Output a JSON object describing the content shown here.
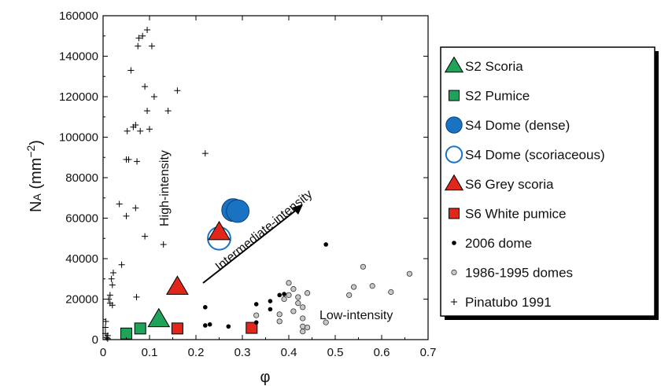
{
  "chart_data": {
    "type": "scatter",
    "xlabel": "φ",
    "ylabel_main": "N",
    "ylabel_sub": "A",
    "ylabel_unit": " (mm",
    "ylabel_exp": "−2",
    "ylabel_close": ")",
    "xlim": [
      0,
      0.7
    ],
    "ylim": [
      0,
      160000
    ],
    "x_ticks": [
      "0",
      "0.1",
      "0.2",
      "0.3",
      "0.4",
      "0.5",
      "0.6",
      "0.7"
    ],
    "y_ticks": [
      "0",
      "20000",
      "40000",
      "60000",
      "80000",
      "100000",
      "120000",
      "140000",
      "160000"
    ],
    "grid": false,
    "legend_position": "right",
    "annotations": {
      "high": "High-intensity",
      "intermediate": "Intermediate-intensity",
      "low": "Low-intensity"
    },
    "series": [
      {
        "name": "S2 Scoria",
        "marker": "triangle",
        "color": "#1fa35b",
        "filled": true,
        "points": [
          [
            0.12,
            10000
          ]
        ]
      },
      {
        "name": "S2 Pumice",
        "marker": "square",
        "color": "#1fa35b",
        "filled": true,
        "points": [
          [
            0.05,
            3000
          ],
          [
            0.08,
            5500
          ]
        ]
      },
      {
        "name": "S4 Dome (dense)",
        "marker": "circle",
        "color": "#1a73c2",
        "filled": true,
        "points": [
          [
            0.28,
            64000
          ],
          [
            0.29,
            63500
          ]
        ]
      },
      {
        "name": "S4 Dome (scoriaceous)",
        "marker": "circle",
        "color": "#1a73c2",
        "filled": false,
        "points": [
          [
            0.25,
            50000
          ]
        ]
      },
      {
        "name": "S6 Grey scoria",
        "marker": "triangle",
        "color": "#e1261c",
        "filled": true,
        "points": [
          [
            0.16,
            26000
          ],
          [
            0.25,
            53000
          ]
        ]
      },
      {
        "name": "S6 White pumice",
        "marker": "square",
        "color": "#e1261c",
        "filled": true,
        "points": [
          [
            0.16,
            5500
          ],
          [
            0.32,
            5800
          ]
        ]
      },
      {
        "name": "2006 dome",
        "marker": "dot",
        "color": "#000000",
        "filled": true,
        "points": [
          [
            0.22,
            16000
          ],
          [
            0.22,
            7000
          ],
          [
            0.23,
            7500
          ],
          [
            0.27,
            6500
          ],
          [
            0.33,
            17500
          ],
          [
            0.33,
            8500
          ],
          [
            0.36,
            19000
          ],
          [
            0.36,
            15000
          ],
          [
            0.38,
            22000
          ],
          [
            0.39,
            22500
          ],
          [
            0.48,
            47000
          ]
        ]
      },
      {
        "name": "1986-1995 domes",
        "marker": "opencircle",
        "color": "#aaaaaa",
        "filled": true,
        "points": [
          [
            0.33,
            12000
          ],
          [
            0.38,
            12500
          ],
          [
            0.38,
            9000
          ],
          [
            0.39,
            20000
          ],
          [
            0.4,
            28000
          ],
          [
            0.4,
            22000
          ],
          [
            0.41,
            25000
          ],
          [
            0.41,
            14000
          ],
          [
            0.42,
            21000
          ],
          [
            0.42,
            18000
          ],
          [
            0.43,
            16000
          ],
          [
            0.43,
            10500
          ],
          [
            0.43,
            6500
          ],
          [
            0.43,
            4000
          ],
          [
            0.44,
            23000
          ],
          [
            0.44,
            6000
          ],
          [
            0.48,
            8500
          ],
          [
            0.53,
            22000
          ],
          [
            0.54,
            26000
          ],
          [
            0.56,
            36000
          ],
          [
            0.58,
            26500
          ],
          [
            0.62,
            23500
          ],
          [
            0.66,
            32500
          ]
        ]
      },
      {
        "name": "Pinatubo 1991",
        "marker": "plus",
        "color": "#000000",
        "filled": true,
        "points": [
          [
            0.005,
            3000
          ],
          [
            0.005,
            6000
          ],
          [
            0.006,
            9000
          ],
          [
            0.008,
            1000
          ],
          [
            0.01,
            500
          ],
          [
            0.01,
            2000
          ],
          [
            0.012,
            20000
          ],
          [
            0.015,
            22000
          ],
          [
            0.015,
            18000
          ],
          [
            0.018,
            30000
          ],
          [
            0.02,
            17000
          ],
          [
            0.02,
            27000
          ],
          [
            0.022,
            33000
          ],
          [
            0.035,
            67000
          ],
          [
            0.04,
            37000
          ],
          [
            0.05,
            89000
          ],
          [
            0.05,
            61000
          ],
          [
            0.052,
            103000
          ],
          [
            0.055,
            89000
          ],
          [
            0.06,
            133000
          ],
          [
            0.065,
            105000
          ],
          [
            0.07,
            106000
          ],
          [
            0.07,
            65000
          ],
          [
            0.072,
            21000
          ],
          [
            0.073,
            88000
          ],
          [
            0.075,
            145000
          ],
          [
            0.077,
            149000
          ],
          [
            0.08,
            103000
          ],
          [
            0.085,
            150000
          ],
          [
            0.09,
            125000
          ],
          [
            0.09,
            51000
          ],
          [
            0.095,
            113000
          ],
          [
            0.1,
            104000
          ],
          [
            0.095,
            153000
          ],
          [
            0.105,
            145000
          ],
          [
            0.11,
            120000
          ],
          [
            0.13,
            47000
          ],
          [
            0.14,
            113000
          ],
          [
            0.16,
            123000
          ],
          [
            0.22,
            92000
          ]
        ]
      }
    ]
  }
}
